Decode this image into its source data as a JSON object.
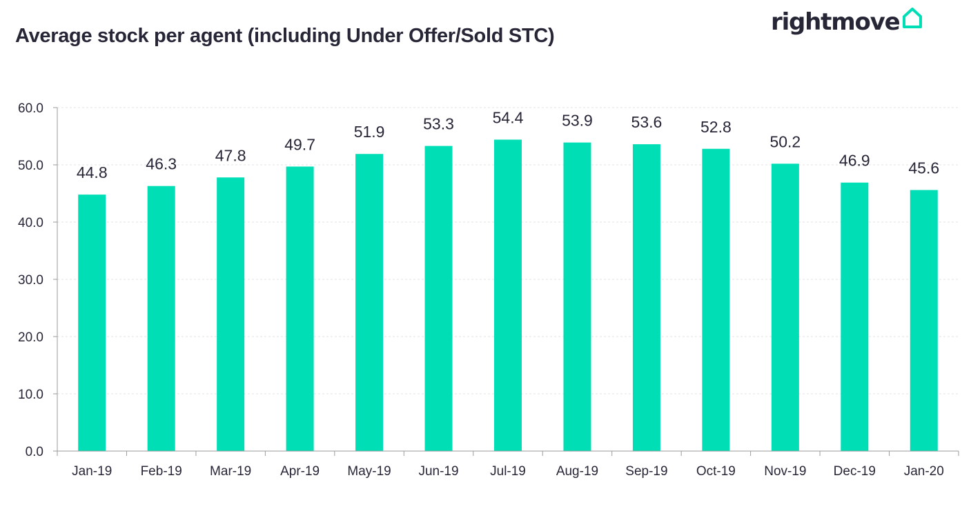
{
  "title": "Average stock per agent (including Under Offer/Sold STC)",
  "logo": {
    "text": "rightmove",
    "icon": "house-outline-icon",
    "icon_color": "#00DEB6"
  },
  "chart_data": {
    "type": "bar",
    "title": "Average stock per agent (including Under Offer/Sold STC)",
    "xlabel": "",
    "ylabel": "",
    "categories": [
      "Jan-19",
      "Feb-19",
      "Mar-19",
      "Apr-19",
      "May-19",
      "Jun-19",
      "Jul-19",
      "Aug-19",
      "Sep-19",
      "Oct-19",
      "Nov-19",
      "Dec-19",
      "Jan-20"
    ],
    "values": [
      44.8,
      46.3,
      47.8,
      49.7,
      51.9,
      53.3,
      54.4,
      53.9,
      53.6,
      52.8,
      50.2,
      46.9,
      45.6
    ],
    "data_labels": [
      "44.8",
      "46.3",
      "47.8",
      "49.7",
      "51.9",
      "53.3",
      "54.4",
      "53.9",
      "53.6",
      "52.8",
      "50.2",
      "46.9",
      "45.6"
    ],
    "ylim": [
      0,
      60
    ],
    "yticks": [
      "0.0",
      "10.0",
      "20.0",
      "30.0",
      "40.0",
      "50.0",
      "60.0"
    ],
    "grid": true,
    "legend": "none",
    "bar_color": "#00DEB6"
  }
}
